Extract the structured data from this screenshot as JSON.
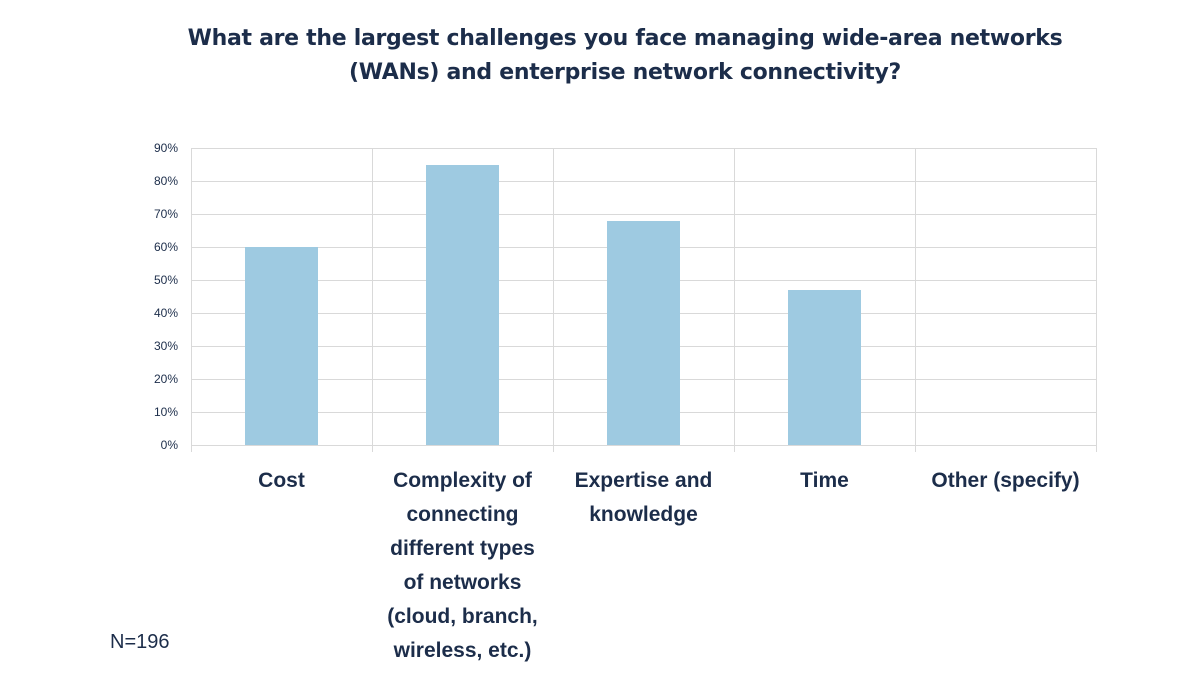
{
  "title_line1": "What are the largest challenges you face managing wide-area networks",
  "title_line2": "(WANs) and enterprise network connectivity?",
  "sample_note": "N=196",
  "colors": {
    "bar": "#9ecae1",
    "text": "#1c2d4a",
    "grid": "#d9d9d9"
  },
  "yticks": [
    "90%",
    "80%",
    "70%",
    "60%",
    "50%",
    "40%",
    "30%",
    "20%",
    "10%",
    "0%"
  ],
  "categories": [
    {
      "lines": [
        "Cost"
      ]
    },
    {
      "lines": [
        "Complexity of",
        "connecting",
        "different types",
        "of networks",
        "(cloud, branch,",
        "wireless, etc.)"
      ]
    },
    {
      "lines": [
        "Expertise and",
        "knowledge"
      ]
    },
    {
      "lines": [
        "Time"
      ]
    },
    {
      "lines": [
        "Other (specify)"
      ]
    }
  ],
  "chart_data": {
    "type": "bar",
    "title": "What are the largest challenges you face managing wide-area networks (WANs) and enterprise network connectivity?",
    "categories": [
      "Cost",
      "Complexity of connecting different types of networks (cloud, branch, wireless, etc.)",
      "Expertise and knowledge",
      "Time",
      "Other (specify)"
    ],
    "values": [
      60,
      85,
      68,
      47,
      0
    ],
    "value_unit": "%",
    "xlabel": "",
    "ylabel": "",
    "ylim": [
      0,
      90
    ],
    "yticks": [
      0,
      10,
      20,
      30,
      40,
      50,
      60,
      70,
      80,
      90
    ],
    "grid": true,
    "legend": "none",
    "annotations": [
      "N=196"
    ]
  }
}
